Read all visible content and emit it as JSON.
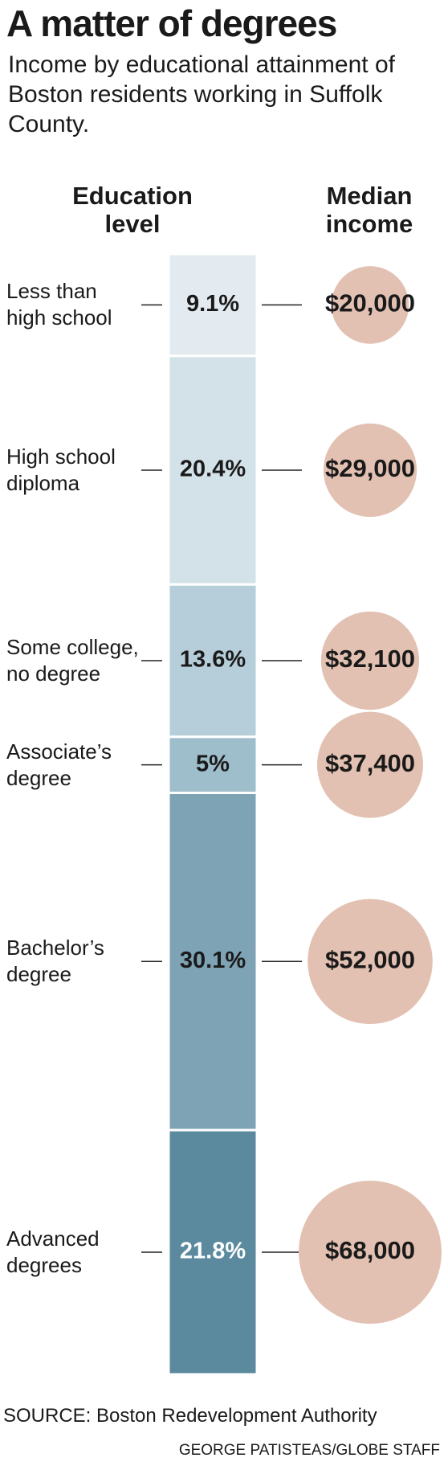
{
  "chart_data": {
    "type": "stacked_bar",
    "title": "A matter of degrees",
    "subtitle": "Income by educational attainment of Boston residents working in Suffolk County.",
    "category_header": "Education level",
    "value_header": "Median income",
    "categories": [
      "Less than high school",
      "High school diploma",
      "Some college, no degree",
      "Associate’s degree",
      "Bachelor’s degree",
      "Advanced degrees"
    ],
    "values": [
      9.1,
      20.4,
      13.6,
      5,
      30.1,
      21.8
    ],
    "value_labels": [
      "9.1%",
      "20.4%",
      "13.6%",
      "5%",
      "30.1%",
      "21.8%"
    ],
    "colors": [
      "#e3ebf1",
      "#d3e1e8",
      "#b6ced9",
      "#9ebecb",
      "#7ea3b4",
      "#5b8a9e"
    ],
    "label_colors": [
      "#1a1a1a",
      "#1a1a1a",
      "#1a1a1a",
      "#1a1a1a",
      "#1a1a1a",
      "#ffffff"
    ],
    "income": {
      "values": [
        20000,
        29000,
        32100,
        37400,
        52000,
        68000
      ],
      "value_labels": [
        "$20,000",
        "$29,000",
        "$32,100",
        "$37,400",
        "$52,000",
        "$68,000"
      ],
      "color": "#e2c1b2"
    },
    "source": "SOURCE: Boston Redevelopment Authority",
    "credit": "GEORGE PATISTEAS/GLOBE STAFF"
  }
}
